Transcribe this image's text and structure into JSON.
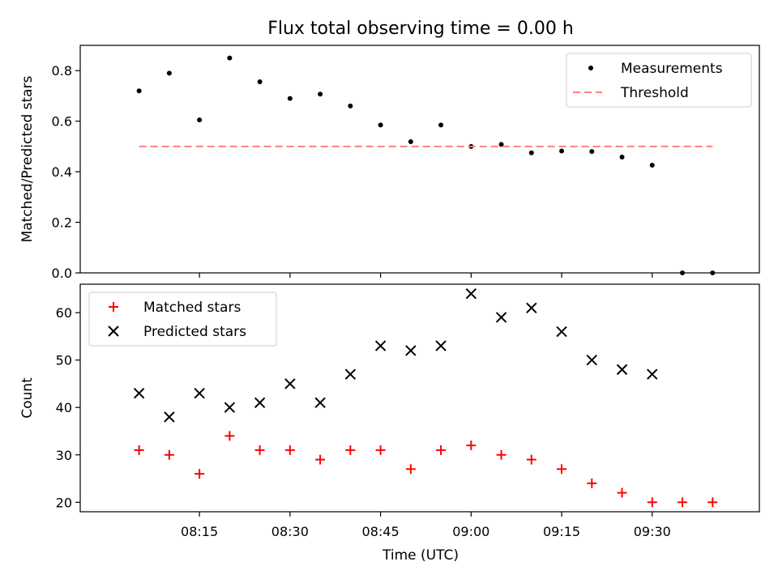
{
  "chart_data": {
    "title": "Flux total observing time = 0.00 h",
    "xlabel": "Time (UTC)",
    "x_tick_labels": [
      "08:15",
      "08:30",
      "08:45",
      "09:00",
      "09:15",
      "09:30"
    ],
    "x_ticks_minutes": [
      495,
      510,
      525,
      540,
      555,
      570
    ],
    "x_range_minutes": [
      475.25,
      587.75
    ],
    "panels": [
      {
        "type": "scatter",
        "ylabel": "Matched/Predicted stars",
        "ylim": [
          0,
          0.9
        ],
        "yticks": [
          0.0,
          0.2,
          0.4,
          0.6,
          0.8
        ],
        "ytick_labels": [
          "0.0",
          "0.2",
          "0.4",
          "0.6",
          "0.8"
        ],
        "legend_position": "top-right",
        "series": [
          {
            "name": "Measurements",
            "marker": "dot",
            "color": "#000000",
            "x": [
              "08:05",
              "08:10",
              "08:15",
              "08:20",
              "08:25",
              "08:30",
              "08:35",
              "08:40",
              "08:45",
              "08:50",
              "08:55",
              "09:00",
              "09:05",
              "09:10",
              "09:15",
              "09:20",
              "09:25",
              "09:30",
              "09:35",
              "09:40"
            ],
            "y": [
              0.72,
              0.79,
              0.605,
              0.85,
              0.756,
              0.69,
              0.707,
              0.66,
              0.585,
              0.519,
              0.585,
              0.5,
              0.508,
              0.475,
              0.482,
              0.48,
              0.458,
              0.426,
              0.0,
              0.0
            ]
          },
          {
            "name": "Threshold",
            "marker": "dashed-line",
            "color": "#ff8080",
            "x": [
              "08:05",
              "09:40"
            ],
            "y": [
              0.5,
              0.5
            ]
          }
        ]
      },
      {
        "type": "scatter",
        "ylabel": "Count",
        "ylim": [
          18,
          66
        ],
        "yticks": [
          20,
          30,
          40,
          50,
          60
        ],
        "ytick_labels": [
          "20",
          "30",
          "40",
          "50",
          "60"
        ],
        "legend_position": "top-left",
        "series": [
          {
            "name": "Matched stars",
            "marker": "plus",
            "color": "#ff0000",
            "x": [
              "08:05",
              "08:10",
              "08:15",
              "08:20",
              "08:25",
              "08:30",
              "08:35",
              "08:40",
              "08:45",
              "08:50",
              "08:55",
              "09:00",
              "09:05",
              "09:10",
              "09:15",
              "09:20",
              "09:25",
              "09:30",
              "09:35",
              "09:40"
            ],
            "y": [
              31,
              30,
              26,
              34,
              31,
              31,
              29,
              31,
              31,
              27,
              31,
              32,
              30,
              29,
              27,
              24,
              22,
              20,
              20,
              20
            ]
          },
          {
            "name": "Predicted stars",
            "marker": "x",
            "color": "#000000",
            "x": [
              "08:05",
              "08:10",
              "08:15",
              "08:20",
              "08:25",
              "08:30",
              "08:35",
              "08:40",
              "08:45",
              "08:50",
              "08:55",
              "09:00",
              "09:05",
              "09:10",
              "09:15",
              "09:20",
              "09:25",
              "09:30"
            ],
            "y": [
              43,
              38,
              43,
              40,
              41,
              45,
              41,
              47,
              53,
              52,
              53,
              64,
              59,
              61,
              56,
              50,
              48,
              47
            ]
          }
        ]
      }
    ]
  }
}
